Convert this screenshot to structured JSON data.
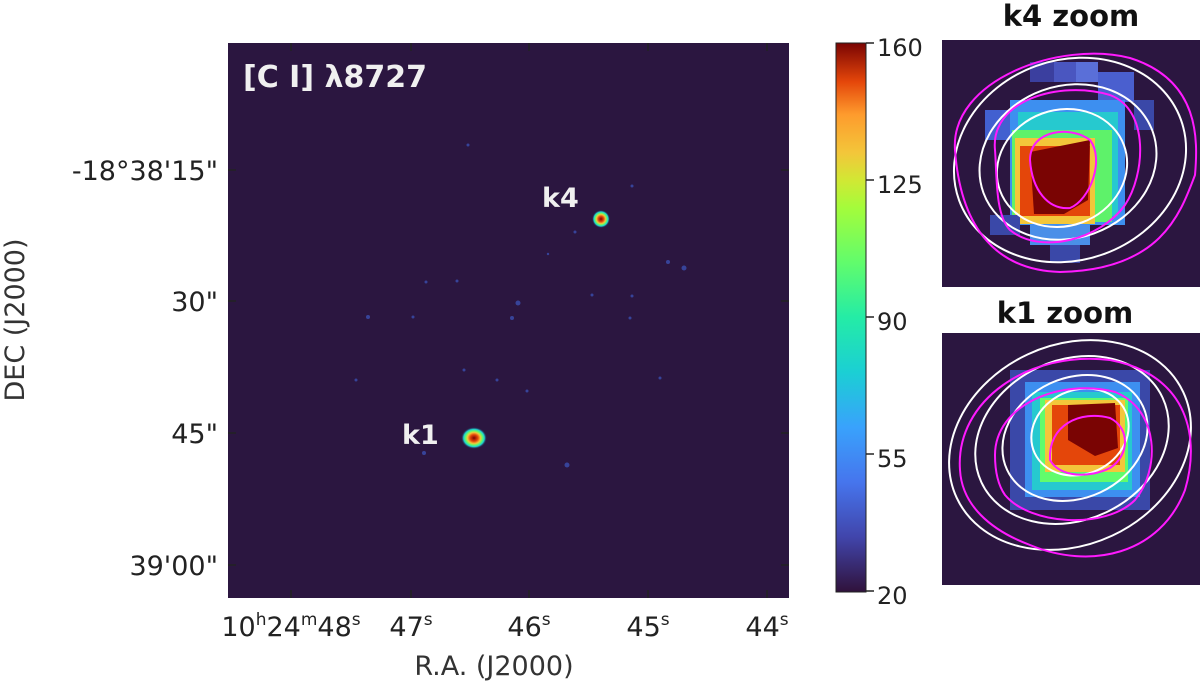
{
  "chart_data": {
    "type": "heatmap",
    "title": "[C I] λ8727",
    "xlabel": "R.A. (J2000)",
    "ylabel": "DEC (J2000)",
    "x_ticks": [
      {
        "major": "10",
        "sup1": "h",
        "mid": "24",
        "sup2": "m",
        "minor": "48",
        "sup3": "s"
      },
      {
        "major": "",
        "sup1": "",
        "mid": "",
        "sup2": "",
        "minor": "47",
        "sup3": "s"
      },
      {
        "major": "",
        "sup1": "",
        "mid": "",
        "sup2": "",
        "minor": "46",
        "sup3": "s"
      },
      {
        "major": "",
        "sup1": "",
        "mid": "",
        "sup2": "",
        "minor": "45",
        "sup3": "s"
      },
      {
        "major": "",
        "sup1": "",
        "mid": "",
        "sup2": "",
        "minor": "44",
        "sup3": "s"
      }
    ],
    "y_ticks": [
      "-18°38'15\"",
      "30\"",
      "45\"",
      "39'00\""
    ],
    "sources": [
      {
        "label": "k4",
        "ra_s": 45.35,
        "dec_arcsec": 20.5
      },
      {
        "label": "k1",
        "ra_s": 46.35,
        "dec_arcsec": 46.0
      }
    ],
    "colorbar": {
      "colormap": "turbo",
      "range": [
        20,
        160
      ],
      "ticks": [
        "160",
        "125",
        "90",
        "55",
        "20"
      ]
    },
    "background_color": "#2b1640",
    "insets": [
      {
        "title": "k4 zoom",
        "source": "k4"
      },
      {
        "title": "k1 zoom",
        "source": "k1"
      }
    ],
    "contour_colors": [
      "#ffffff",
      "#ff1aff"
    ]
  }
}
